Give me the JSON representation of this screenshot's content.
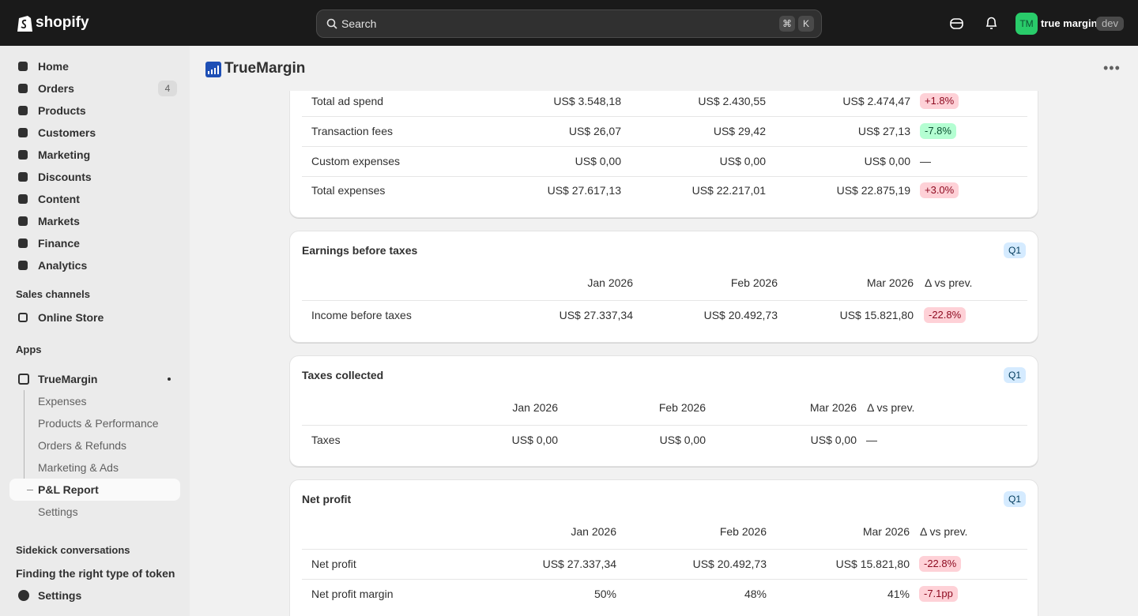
{
  "topbar": {
    "brand": "shopify",
    "search": "Search",
    "shortcut": [
      "⌘",
      "K"
    ],
    "avatar": "TM",
    "store": "true margin",
    "badge": "dev"
  },
  "sidebar": {
    "nav": [
      {
        "label": "Home"
      },
      {
        "label": "Orders",
        "count": "4"
      },
      {
        "label": "Products"
      },
      {
        "label": "Customers"
      },
      {
        "label": "Marketing"
      },
      {
        "label": "Discounts"
      },
      {
        "label": "Content"
      },
      {
        "label": "Markets"
      },
      {
        "label": "Finance"
      },
      {
        "label": "Analytics"
      }
    ],
    "sales_channels": "Sales channels",
    "online_store": "Online Store",
    "apps": "Apps",
    "app": "TrueMargin",
    "subnav": [
      "Expenses",
      "Products & Performance",
      "Orders & Refunds",
      "Marketing & Ads",
      "P&L Report",
      "Settings"
    ],
    "sidekick": "Sidekick conversations",
    "conversation": "Finding the right type of token",
    "settings": "Settings"
  },
  "app_header": {
    "title": "TrueMargin"
  },
  "sections": [
    {
      "rows": [
        {
          "label": "Total ad spend",
          "values": [
            "US$ 3.548,18",
            "US$ 2.430,55",
            "US$ 2.474,47"
          ],
          "delta": "+1.8%",
          "delta_color": "red"
        },
        {
          "label": "Transaction fees",
          "values": [
            "US$ 26,07",
            "US$ 29,42",
            "US$ 27,13"
          ],
          "delta": "-7.8%",
          "delta_color": "green"
        },
        {
          "label": "Custom expenses",
          "values": [
            "US$ 0,00",
            "US$ 0,00",
            "US$ 0,00"
          ],
          "delta": "—"
        },
        {
          "label": "Total expenses",
          "values": [
            "US$ 27.617,13",
            "US$ 22.217,01",
            "US$ 22.875,19"
          ],
          "delta": "+3.0%",
          "delta_color": "red"
        }
      ]
    },
    {
      "title": "Earnings before taxes",
      "badge": "Q1",
      "columns": [
        "Jan 2026",
        "Feb 2026",
        "Mar 2026",
        "Δ vs prev."
      ],
      "rows": [
        {
          "label": "Income before taxes",
          "values": [
            "US$ 27.337,34",
            "US$ 20.492,73",
            "US$ 15.821,80"
          ],
          "delta": "-22.8%",
          "delta_color": "red"
        }
      ]
    },
    {
      "title": "Taxes collected",
      "badge": "Q1",
      "columns": [
        "Jan 2026",
        "Feb 2026",
        "Mar 2026",
        "Δ vs prev."
      ],
      "rows": [
        {
          "label": "Taxes",
          "values": [
            "US$ 0,00",
            "US$ 0,00",
            "US$ 0,00"
          ],
          "delta": "—"
        }
      ]
    },
    {
      "title": "Net profit",
      "badge": "Q1",
      "columns": [
        "Jan 2026",
        "Feb 2026",
        "Mar 2026",
        "Δ vs prev."
      ],
      "rows": [
        {
          "label": "Net profit",
          "values": [
            "US$ 27.337,34",
            "US$ 20.492,73",
            "US$ 15.821,80"
          ],
          "delta": "-22.8%",
          "delta_color": "red"
        },
        {
          "label": "Net profit margin",
          "values": [
            "50%",
            "48%",
            "41%"
          ],
          "delta": "-7.1pp",
          "delta_color": "red"
        }
      ]
    }
  ]
}
